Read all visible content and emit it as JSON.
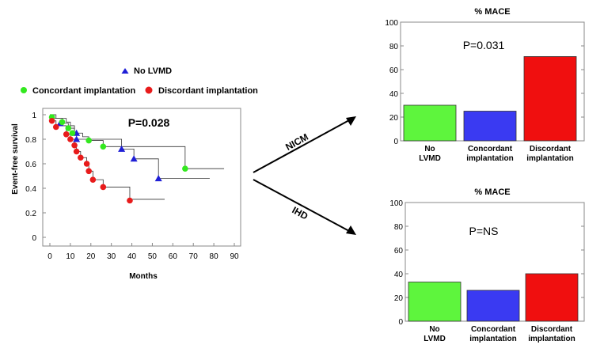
{
  "chart_data": [
    {
      "type": "scatter",
      "subtype": "kaplan-meier",
      "title": "",
      "annotation": "P=0.028",
      "xlabel": "Months",
      "ylabel": "Event-free survival",
      "xlim": [
        0,
        90
      ],
      "ylim": [
        0,
        1
      ],
      "xticks": [
        "0",
        "10",
        "20",
        "30",
        "40",
        "50",
        "60",
        "70",
        "80",
        "90"
      ],
      "yticks": [
        "0",
        "0.2",
        "0.4",
        "0.6",
        "0.8",
        "1"
      ],
      "legend": [
        "No LVMD",
        "Concordant implantation",
        "Discordant implantation"
      ],
      "series": [
        {
          "name": "No LVMD",
          "color": "#1f1fd6",
          "marker": "triangle",
          "steps": [
            [
              0,
              1.0
            ],
            [
              3,
              0.97
            ],
            [
              8,
              0.94
            ],
            [
              10,
              0.91
            ],
            [
              12,
              0.85
            ],
            [
              13,
              0.8
            ],
            [
              26,
              0.8
            ],
            [
              35,
              0.72
            ],
            [
              41,
              0.64
            ],
            [
              53,
              0.48
            ],
            [
              78,
              0.48
            ]
          ],
          "markers": [
            [
              5,
              0.93
            ],
            [
              13,
              0.85
            ],
            [
              13,
              0.8
            ],
            [
              35,
              0.72
            ],
            [
              41,
              0.64
            ],
            [
              53,
              0.48
            ]
          ]
        },
        {
          "name": "Concordant implantation",
          "color": "#33e81f",
          "marker": "circle",
          "steps": [
            [
              0,
              1.0
            ],
            [
              2,
              0.97
            ],
            [
              6,
              0.93
            ],
            [
              9,
              0.89
            ],
            [
              12,
              0.85
            ],
            [
              16,
              0.82
            ],
            [
              19,
              0.79
            ],
            [
              26,
              0.74
            ],
            [
              66,
              0.56
            ],
            [
              85,
              0.56
            ]
          ],
          "markers": [
            [
              1,
              0.98
            ],
            [
              6,
              0.94
            ],
            [
              9,
              0.89
            ],
            [
              11,
              0.85
            ],
            [
              19,
              0.79
            ],
            [
              26,
              0.74
            ],
            [
              66,
              0.56
            ]
          ]
        },
        {
          "name": "Discordant implantation",
          "color": "#e81b1b",
          "marker": "circle",
          "steps": [
            [
              0,
              0.97
            ],
            [
              1,
              0.95
            ],
            [
              3,
              0.91
            ],
            [
              8,
              0.84
            ],
            [
              10,
              0.8
            ],
            [
              12,
              0.75
            ],
            [
              13,
              0.7
            ],
            [
              15,
              0.65
            ],
            [
              18,
              0.6
            ],
            [
              19,
              0.54
            ],
            [
              21,
              0.47
            ],
            [
              26,
              0.41
            ],
            [
              39,
              0.31
            ],
            [
              56,
              0.31
            ]
          ],
          "markers": [
            [
              1,
              0.95
            ],
            [
              3,
              0.9
            ],
            [
              8,
              0.84
            ],
            [
              10,
              0.8
            ],
            [
              12,
              0.75
            ],
            [
              13,
              0.7
            ],
            [
              15,
              0.65
            ],
            [
              18,
              0.6
            ],
            [
              19,
              0.54
            ],
            [
              21,
              0.47
            ],
            [
              26,
              0.41
            ],
            [
              39,
              0.3
            ]
          ]
        }
      ]
    },
    {
      "type": "bar",
      "title": "% MACE",
      "annotation": "P=0.031",
      "categories": [
        "No LVMD",
        "Concordant implantation",
        "Discordant implantation"
      ],
      "values": [
        30,
        25,
        71
      ],
      "colors": [
        "#5ef53d",
        "#3a3af2",
        "#f00f0f"
      ],
      "ylim": [
        0,
        100
      ],
      "yticks": [
        "0",
        "20",
        "40",
        "60",
        "80",
        "100"
      ]
    },
    {
      "type": "bar",
      "title": "% MACE",
      "annotation": "P=NS",
      "categories": [
        "No LVMD",
        "Concordant implantation",
        "Discordant implantation"
      ],
      "values": [
        33,
        26,
        40
      ],
      "colors": [
        "#5ef53d",
        "#3a3af2",
        "#f00f0f"
      ],
      "ylim": [
        0,
        100
      ],
      "yticks": [
        "0",
        "20",
        "40",
        "60",
        "80",
        "100"
      ]
    }
  ],
  "arrows": {
    "upper_label": "NICM",
    "lower_label": "IHD"
  }
}
